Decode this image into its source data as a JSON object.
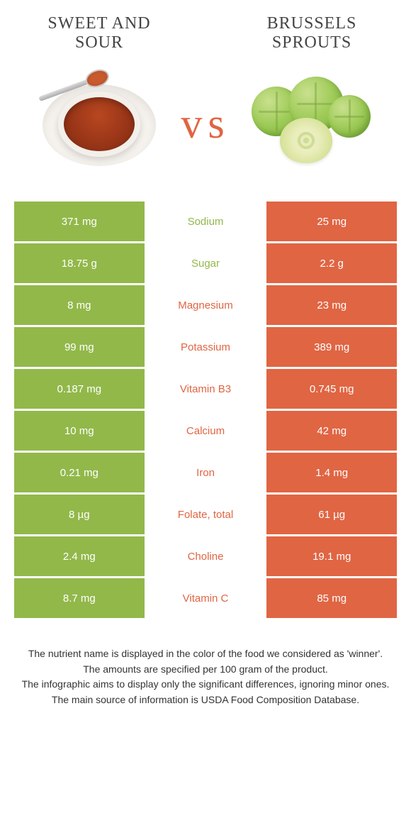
{
  "colors": {
    "green": "#92b84a",
    "orange": "#e06543",
    "bg": "#ffffff",
    "text": "#333333"
  },
  "food_left": {
    "title": "Sweet and sour"
  },
  "food_right": {
    "title": "Brussels sprouts"
  },
  "vs_label": "vs",
  "rows": [
    {
      "nutrient": "Sodium",
      "left": "371 mg",
      "right": "25 mg",
      "winner": "left"
    },
    {
      "nutrient": "Sugar",
      "left": "18.75 g",
      "right": "2.2 g",
      "winner": "left"
    },
    {
      "nutrient": "Magnesium",
      "left": "8 mg",
      "right": "23 mg",
      "winner": "right"
    },
    {
      "nutrient": "Potassium",
      "left": "99 mg",
      "right": "389 mg",
      "winner": "right"
    },
    {
      "nutrient": "Vitamin B3",
      "left": "0.187 mg",
      "right": "0.745 mg",
      "winner": "right"
    },
    {
      "nutrient": "Calcium",
      "left": "10 mg",
      "right": "42 mg",
      "winner": "right"
    },
    {
      "nutrient": "Iron",
      "left": "0.21 mg",
      "right": "1.4 mg",
      "winner": "right"
    },
    {
      "nutrient": "Folate, total",
      "left": "8 µg",
      "right": "61 µg",
      "winner": "right"
    },
    {
      "nutrient": "Choline",
      "left": "2.4 mg",
      "right": "19.1 mg",
      "winner": "right"
    },
    {
      "nutrient": "Vitamin C",
      "left": "8.7 mg",
      "right": "85 mg",
      "winner": "right"
    }
  ],
  "footer": {
    "l1": "The nutrient name is displayed in the color of the food we considered as 'winner'.",
    "l2": "The amounts are specified per 100 gram of the product.",
    "l3": "The infographic aims to display only the significant differences, ignoring minor ones.",
    "l4": "The main source of information is USDA Food Composition Database."
  }
}
